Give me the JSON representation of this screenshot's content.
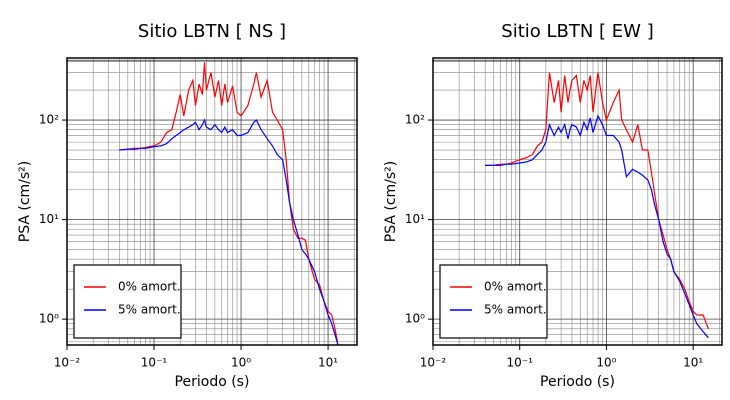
{
  "chart_data": [
    {
      "type": "line",
      "title": "Sitio LBTN [ NS ]",
      "x_label": "Periodo (s)",
      "y_label": "PSA (cm/s²)",
      "log_x": true,
      "log_y": true,
      "grid": true,
      "legend": "lower left",
      "xlim": [
        0.01,
        21.5
      ],
      "ylim": [
        0.55,
        420
      ],
      "xticks": [
        {
          "value": 0.01,
          "label": "10⁻²"
        },
        {
          "value": 0.1,
          "label": "10⁻¹"
        },
        {
          "value": 1,
          "label": "10⁰"
        },
        {
          "value": 10,
          "label": "10¹"
        }
      ],
      "yticks": [
        {
          "value": 1,
          "label": "10⁰"
        },
        {
          "value": 10,
          "label": "10¹"
        },
        {
          "value": 100,
          "label": "10²"
        }
      ],
      "xminorticks": [
        0.02,
        0.03,
        0.04,
        0.05,
        0.06,
        0.07,
        0.08,
        0.09,
        0.2,
        0.3,
        0.4,
        0.5,
        0.6,
        0.7,
        0.8,
        0.9,
        2,
        3,
        4,
        5,
        6,
        7,
        8,
        9,
        20
      ],
      "yminorticks": [
        0.6,
        0.7,
        0.8,
        0.9,
        2,
        3,
        4,
        5,
        6,
        7,
        8,
        9,
        20,
        30,
        40,
        50,
        60,
        70,
        80,
        90,
        200,
        300,
        400
      ],
      "x": [
        0.04,
        0.05,
        0.06,
        0.07,
        0.08,
        0.1,
        0.12,
        0.14,
        0.16,
        0.18,
        0.2,
        0.22,
        0.25,
        0.28,
        0.3,
        0.33,
        0.36,
        0.38,
        0.4,
        0.45,
        0.5,
        0.55,
        0.6,
        0.65,
        0.7,
        0.8,
        0.9,
        1.0,
        1.2,
        1.4,
        1.5,
        1.7,
        2.0,
        2.3,
        2.6,
        3.0,
        3.3,
        3.6,
        4.0,
        4.5,
        5.0,
        5.5,
        6,
        7,
        8,
        9,
        10,
        11,
        12,
        13
      ],
      "series": [
        {
          "name": "0% amort.",
          "color": "#ff0000",
          "values": [
            50,
            51,
            52,
            52,
            53,
            55,
            60,
            75,
            80,
            120,
            180,
            110,
            200,
            250,
            140,
            230,
            180,
            380,
            200,
            300,
            170,
            250,
            140,
            230,
            150,
            220,
            120,
            110,
            140,
            230,
            300,
            170,
            250,
            120,
            100,
            80,
            40,
            15,
            8,
            6.5,
            6.5,
            6.2,
            4,
            2.5,
            2.2,
            1.5,
            1.2,
            1.1,
            0.8,
            0.55
          ]
        },
        {
          "name": "5% amort.",
          "color": "#0000ff",
          "values": [
            50,
            51,
            51,
            52,
            52,
            54,
            55,
            58,
            65,
            70,
            75,
            80,
            85,
            90,
            95,
            80,
            90,
            100,
            85,
            80,
            90,
            80,
            75,
            85,
            75,
            80,
            70,
            70,
            75,
            95,
            100,
            80,
            65,
            55,
            45,
            40,
            25,
            15,
            10,
            7,
            5,
            4.5,
            4,
            3,
            2,
            1.5,
            1.1,
            0.9,
            0.7,
            0.55
          ]
        }
      ]
    },
    {
      "type": "line",
      "title": "Sitio LBTN [ EW ]",
      "x_label": "Periodo (s)",
      "y_label": "PSA (cm/s²)",
      "log_x": true,
      "log_y": true,
      "grid": true,
      "legend": "lower left",
      "xlim": [
        0.01,
        21.5
      ],
      "ylim": [
        0.55,
        420
      ],
      "xticks": [
        {
          "value": 0.01,
          "label": "10⁻²"
        },
        {
          "value": 0.1,
          "label": "10⁻¹"
        },
        {
          "value": 1,
          "label": "10⁰"
        },
        {
          "value": 10,
          "label": "10¹"
        }
      ],
      "yticks": [
        {
          "value": 1,
          "label": "10⁰"
        },
        {
          "value": 10,
          "label": "10¹"
        },
        {
          "value": 100,
          "label": "10²"
        }
      ],
      "xminorticks": [
        0.02,
        0.03,
        0.04,
        0.05,
        0.06,
        0.07,
        0.08,
        0.09,
        0.2,
        0.3,
        0.4,
        0.5,
        0.6,
        0.7,
        0.8,
        0.9,
        2,
        3,
        4,
        5,
        6,
        7,
        8,
        9,
        20
      ],
      "yminorticks": [
        0.6,
        0.7,
        0.8,
        0.9,
        2,
        3,
        4,
        5,
        6,
        7,
        8,
        9,
        20,
        30,
        40,
        50,
        60,
        70,
        80,
        90,
        200,
        300,
        400
      ],
      "x": [
        0.04,
        0.05,
        0.06,
        0.07,
        0.08,
        0.1,
        0.12,
        0.14,
        0.16,
        0.18,
        0.2,
        0.22,
        0.25,
        0.28,
        0.3,
        0.33,
        0.36,
        0.38,
        0.4,
        0.45,
        0.5,
        0.55,
        0.6,
        0.65,
        0.7,
        0.8,
        0.9,
        1.0,
        1.2,
        1.4,
        1.5,
        1.7,
        2.0,
        2.3,
        2.6,
        3.0,
        3.3,
        3.6,
        4.0,
        4.5,
        5.0,
        5.5,
        6,
        7,
        8,
        9,
        10,
        11,
        13,
        15
      ],
      "series": [
        {
          "name": "0% amort.",
          "color": "#ff0000",
          "values": [
            35,
            35,
            36,
            36,
            37,
            40,
            42,
            45,
            55,
            60,
            80,
            300,
            150,
            250,
            120,
            280,
            150,
            200,
            250,
            280,
            150,
            250,
            200,
            280,
            120,
            300,
            150,
            100,
            150,
            200,
            100,
            80,
            60,
            90,
            50,
            50,
            30,
            18,
            10,
            7,
            5,
            4,
            3,
            2.5,
            2,
            1.5,
            1.2,
            1.1,
            1.1,
            0.8
          ]
        },
        {
          "name": "5% amort.",
          "color": "#0000ff",
          "values": [
            35,
            35,
            35,
            36,
            36,
            37,
            38,
            40,
            45,
            50,
            60,
            90,
            70,
            85,
            75,
            90,
            65,
            80,
            90,
            85,
            70,
            95,
            80,
            105,
            75,
            110,
            90,
            70,
            70,
            60,
            50,
            27,
            32,
            30,
            28,
            25,
            20,
            14,
            10,
            6,
            4.5,
            4,
            3,
            2.4,
            1.8,
            1.4,
            1.1,
            0.9,
            0.75,
            0.65
          ]
        }
      ]
    }
  ]
}
